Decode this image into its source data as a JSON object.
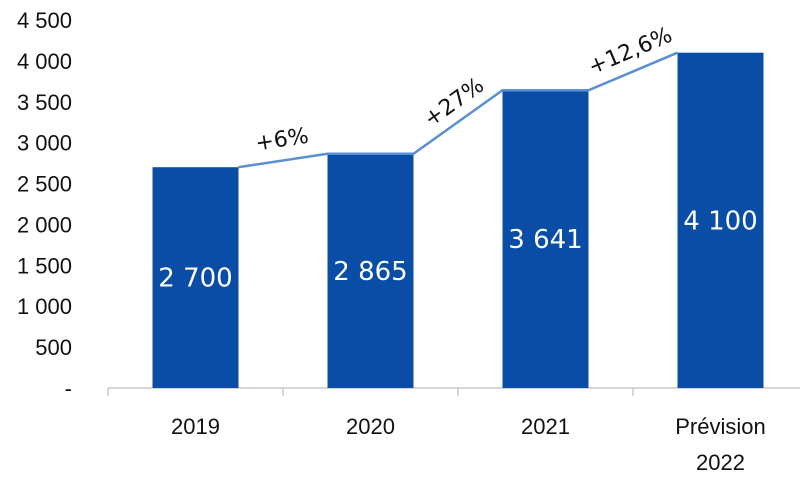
{
  "chart_data": {
    "type": "bar",
    "categories": [
      "2019",
      "2020",
      "2021",
      "Prévision 2022"
    ],
    "category_lines": [
      [
        "2019"
      ],
      [
        "2020"
      ],
      [
        "2021"
      ],
      [
        "Prévision",
        "2022"
      ]
    ],
    "values": [
      2700,
      2865,
      3641,
      4100
    ],
    "value_labels": [
      "2 700",
      "2 865",
      "3 641",
      "4 100"
    ],
    "ylim": [
      0,
      4500
    ],
    "y_ticks": [
      0,
      500,
      1000,
      1500,
      2000,
      2500,
      3000,
      3500,
      4000,
      4500
    ],
    "y_tick_labels": [
      "-",
      "500",
      "1 000",
      "1 500",
      "2 000",
      "2 500",
      "3 000",
      "3 500",
      "4 000",
      "4 500"
    ],
    "growth_labels": [
      "+6%",
      "+27%",
      "+12,6%"
    ],
    "title": "",
    "xlabel": "",
    "ylabel": "",
    "grid": false,
    "bar_color": "#0a4da6",
    "line_color": "#5b8fd4"
  }
}
